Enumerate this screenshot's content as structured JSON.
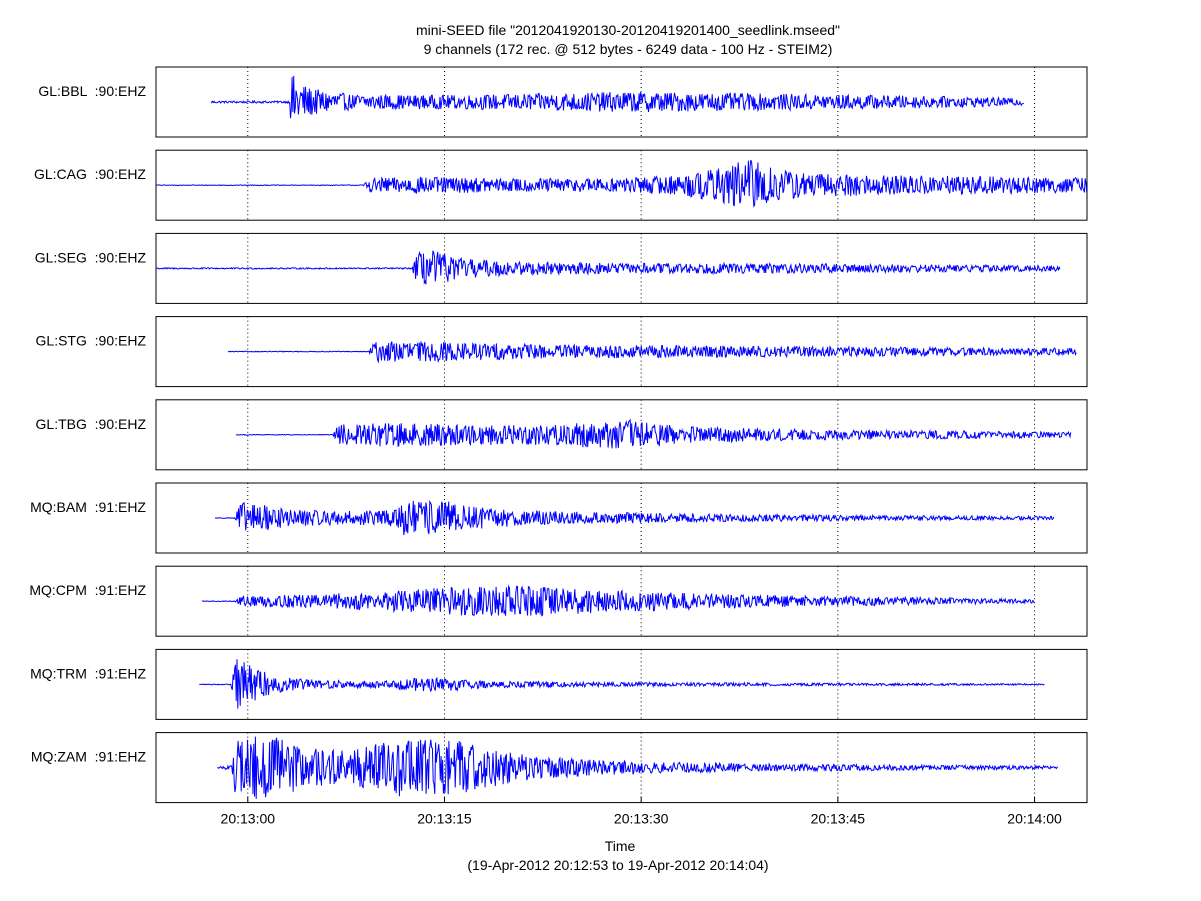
{
  "chart_data": {
    "type": "line",
    "title": "mini-SEED file \"2012041920130-20120419201400_seedlink.mseed\"",
    "subtitle": "9 channels (172 rec. @ 512 bytes - 6249 data - 100 Hz - STEIM2)",
    "xlabel": "Time",
    "xlabel_range": "(19-Apr-2012 20:12:53 to 19-Apr-2012 20:14:04)",
    "x_unit": "seconds after 20:12:53",
    "xlim": [
      0,
      71
    ],
    "x_ticks": [
      {
        "label": "20:13:00",
        "t": 7
      },
      {
        "label": "20:13:15",
        "t": 22
      },
      {
        "label": "20:13:30",
        "t": 37
      },
      {
        "label": "20:13:45",
        "t": 52
      },
      {
        "label": "20:14:00",
        "t": 67
      }
    ],
    "grid": "vertical dotted",
    "legend": "none",
    "line_color": "#0000ff",
    "series": [
      {
        "name": "GL:BBL  :90:EHZ",
        "start": 4.2,
        "end": 66.2,
        "envelope": [
          [
            4.2,
            0.03
          ],
          [
            10.2,
            0.03
          ],
          [
            10.3,
            0.85
          ],
          [
            11.5,
            0.45
          ],
          [
            12.5,
            0.35
          ],
          [
            15,
            0.22
          ],
          [
            22,
            0.2
          ],
          [
            30,
            0.25
          ],
          [
            36,
            0.3
          ],
          [
            45,
            0.25
          ],
          [
            55,
            0.2
          ],
          [
            62,
            0.15
          ],
          [
            66.2,
            0.1
          ]
        ]
      },
      {
        "name": "GL:CAG  :90:EHZ",
        "start": 0,
        "end": 71,
        "envelope": [
          [
            0,
            0.01
          ],
          [
            15.8,
            0.01
          ],
          [
            16.2,
            0.2
          ],
          [
            20,
            0.25
          ],
          [
            26,
            0.2
          ],
          [
            35,
            0.2
          ],
          [
            40,
            0.3
          ],
          [
            44,
            0.6
          ],
          [
            45.5,
            0.85
          ],
          [
            47,
            0.5
          ],
          [
            50,
            0.35
          ],
          [
            55,
            0.3
          ],
          [
            65,
            0.25
          ],
          [
            71,
            0.22
          ]
        ]
      },
      {
        "name": "GL:SEG  :90:EHZ",
        "start": 0,
        "end": 69,
        "envelope": [
          [
            0,
            0.02
          ],
          [
            19.5,
            0.02
          ],
          [
            19.9,
            0.45
          ],
          [
            21,
            0.55
          ],
          [
            23,
            0.3
          ],
          [
            27,
            0.2
          ],
          [
            35,
            0.15
          ],
          [
            45,
            0.15
          ],
          [
            55,
            0.12
          ],
          [
            62,
            0.1
          ],
          [
            69,
            0.08
          ]
        ]
      },
      {
        "name": "GL:STG  :90:EHZ",
        "start": 5.5,
        "end": 70.2,
        "envelope": [
          [
            5.5,
            0.01
          ],
          [
            16.2,
            0.01
          ],
          [
            16.6,
            0.3
          ],
          [
            20,
            0.3
          ],
          [
            30,
            0.2
          ],
          [
            40,
            0.18
          ],
          [
            50,
            0.15
          ],
          [
            60,
            0.12
          ],
          [
            70.2,
            0.1
          ]
        ]
      },
      {
        "name": "GL:TBG  :90:EHZ",
        "start": 6.1,
        "end": 69.8,
        "envelope": [
          [
            6.1,
            0.01
          ],
          [
            13.5,
            0.01
          ],
          [
            13.9,
            0.3
          ],
          [
            18,
            0.35
          ],
          [
            25,
            0.3
          ],
          [
            30,
            0.3
          ],
          [
            36,
            0.45
          ],
          [
            40,
            0.25
          ],
          [
            50,
            0.15
          ],
          [
            60,
            0.12
          ],
          [
            69.8,
            0.08
          ]
        ]
      },
      {
        "name": "MQ:BAM  :91:EHZ",
        "start": 4.5,
        "end": 68.5,
        "envelope": [
          [
            4.5,
            0.01
          ],
          [
            6.0,
            0.01
          ],
          [
            6.4,
            0.45
          ],
          [
            8,
            0.4
          ],
          [
            10,
            0.25
          ],
          [
            14,
            0.2
          ],
          [
            18.3,
            0.25
          ],
          [
            18.7,
            0.5
          ],
          [
            22,
            0.5
          ],
          [
            25,
            0.3
          ],
          [
            30,
            0.2
          ],
          [
            40,
            0.12
          ],
          [
            55,
            0.08
          ],
          [
            68.5,
            0.05
          ]
        ]
      },
      {
        "name": "MQ:CPM  :91:EHZ",
        "start": 3.5,
        "end": 67.0,
        "envelope": [
          [
            3.5,
            0.01
          ],
          [
            6,
            0.01
          ],
          [
            6.5,
            0.15
          ],
          [
            12,
            0.2
          ],
          [
            18,
            0.3
          ],
          [
            22,
            0.4
          ],
          [
            28,
            0.45
          ],
          [
            33,
            0.35
          ],
          [
            40,
            0.25
          ],
          [
            50,
            0.15
          ],
          [
            60,
            0.1
          ],
          [
            67,
            0.06
          ]
        ]
      },
      {
        "name": "MQ:TRM  :91:EHZ",
        "start": 3.3,
        "end": 67.8,
        "envelope": [
          [
            3.3,
            0.01
          ],
          [
            5.7,
            0.01
          ],
          [
            6.2,
            0.8
          ],
          [
            7.2,
            0.55
          ],
          [
            9,
            0.25
          ],
          [
            12,
            0.12
          ],
          [
            18,
            0.1
          ],
          [
            20,
            0.25
          ],
          [
            22,
            0.2
          ],
          [
            26,
            0.1
          ],
          [
            35,
            0.06
          ],
          [
            50,
            0.04
          ],
          [
            67.8,
            0.02
          ]
        ]
      },
      {
        "name": "MQ:ZAM  :91:EHZ",
        "start": 4.7,
        "end": 68.8,
        "envelope": [
          [
            4.7,
            0.02
          ],
          [
            5.8,
            0.08
          ],
          [
            6.1,
            0.95
          ],
          [
            9,
            0.9
          ],
          [
            12,
            0.55
          ],
          [
            15,
            0.5
          ],
          [
            19,
            0.9
          ],
          [
            23,
            0.8
          ],
          [
            27,
            0.45
          ],
          [
            32,
            0.25
          ],
          [
            40,
            0.15
          ],
          [
            50,
            0.1
          ],
          [
            60,
            0.07
          ],
          [
            68.8,
            0.05
          ]
        ]
      }
    ]
  }
}
